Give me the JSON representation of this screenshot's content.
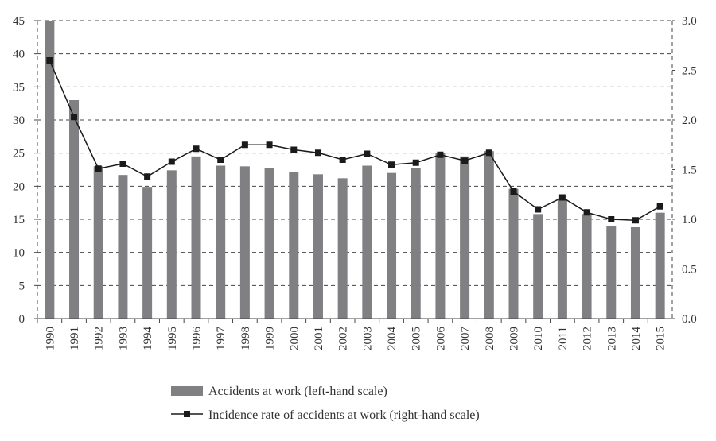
{
  "chart_data": {
    "type": "bar",
    "title": "",
    "xlabel": "",
    "ylabel": "",
    "categories": [
      "1990",
      "1991",
      "1992",
      "1993",
      "1994",
      "1995",
      "1996",
      "1997",
      "1998",
      "1999",
      "2000",
      "2001",
      "2002",
      "2003",
      "2004",
      "2005",
      "2006",
      "2007",
      "2008",
      "2009",
      "2010",
      "2011",
      "2012",
      "2013",
      "2014",
      "2015"
    ],
    "series": [
      {
        "name": "Accidents at work (left-hand scale)",
        "type": "bar",
        "axis": "left",
        "color": "#808083",
        "values": [
          45.0,
          33.0,
          23.0,
          21.7,
          19.9,
          22.4,
          24.5,
          23.1,
          23.0,
          22.8,
          22.1,
          21.8,
          21.2,
          23.1,
          22.0,
          22.7,
          25.0,
          24.5,
          25.3,
          19.6,
          15.8,
          18.0,
          15.8,
          14.0,
          13.8,
          16.0
        ]
      },
      {
        "name": "Incidence rate of accidents at work (right-hand scale)",
        "type": "line",
        "axis": "right",
        "color": "#1a1a1a",
        "values": [
          2.6,
          2.03,
          1.51,
          1.56,
          1.43,
          1.58,
          1.71,
          1.6,
          1.75,
          1.75,
          1.7,
          1.67,
          1.6,
          1.66,
          1.55,
          1.57,
          1.65,
          1.59,
          1.67,
          1.28,
          1.1,
          1.22,
          1.07,
          1.0,
          0.99,
          1.13
        ]
      }
    ],
    "y_left": {
      "range": [
        0,
        45
      ],
      "ticks": [
        "0",
        "5",
        "10",
        "15",
        "20",
        "25",
        "30",
        "35",
        "40",
        "45"
      ]
    },
    "y_right": {
      "range": [
        0,
        3.0
      ],
      "ticks": [
        "0.0",
        "0.5",
        "1.0",
        "1.5",
        "2.0",
        "2.5",
        "3.0"
      ]
    },
    "grid": true,
    "legend_position": "bottom"
  }
}
